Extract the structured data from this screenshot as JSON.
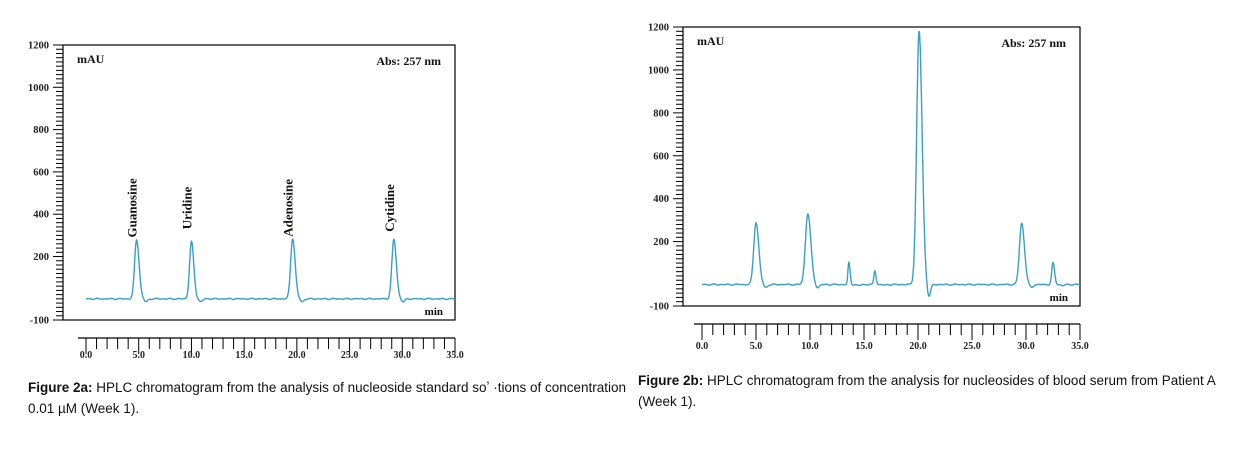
{
  "figures": [
    {
      "chart_data": {
        "type": "line",
        "xlabel": "min",
        "ylabel": "mAU",
        "annotation": "Abs: 257 nm",
        "xlim": [
          0,
          35
        ],
        "ylim": [
          -100,
          1200
        ],
        "x_ticks": [
          "0.0",
          "5.0",
          "10.0",
          "15.0",
          "20.0",
          "25.0",
          "30.0",
          "35.0"
        ],
        "y_ticks": [
          "-100",
          "200",
          "400",
          "600",
          "800",
          "1000",
          "1200"
        ],
        "y_tick_values": [
          -100,
          200,
          400,
          600,
          800,
          1000,
          1200
        ],
        "baseline": 0,
        "peaks": [
          {
            "label": "Guanosine",
            "time": 4.8,
            "height": 280,
            "width": 0.32
          },
          {
            "label": "Uridine",
            "time": 10.0,
            "height": 270,
            "width": 0.3
          },
          {
            "label": "Adenosine",
            "time": 19.6,
            "height": 285,
            "width": 0.32
          },
          {
            "label": "Cytidine",
            "time": 29.2,
            "height": 280,
            "width": 0.32
          }
        ],
        "color": "#3a9fc4"
      },
      "caption_label": "Figure 2a:",
      "caption_text": " HPLC chromatogram from the analysis of nucleoside standard soʼ ·tions of concentration 0.01 µM (Week 1)."
    },
    {
      "chart_data": {
        "type": "line",
        "xlabel": "min",
        "ylabel": "mAU",
        "annotation": "Abs: 257 nm",
        "xlim": [
          0,
          35
        ],
        "ylim": [
          -100,
          1200
        ],
        "x_ticks": [
          "0.0",
          "5.0",
          "10.0",
          "15.0",
          "20.0",
          "25.0",
          "30.0",
          "35.0"
        ],
        "y_ticks": [
          "-100",
          "200",
          "400",
          "600",
          "800",
          "1000",
          "1200"
        ],
        "y_tick_values": [
          -100,
          200,
          400,
          600,
          800,
          1000,
          1200
        ],
        "baseline": 0,
        "peaks": [
          {
            "label": "",
            "time": 5.0,
            "height": 290,
            "width": 0.35
          },
          {
            "label": "",
            "time": 9.8,
            "height": 330,
            "width": 0.38
          },
          {
            "label": "",
            "time": 13.6,
            "height": 100,
            "width": 0.15
          },
          {
            "label": "",
            "time": 16.0,
            "height": 65,
            "width": 0.15
          },
          {
            "label": "",
            "time": 20.1,
            "height": 1180,
            "width": 0.38
          },
          {
            "label": "",
            "time": 29.6,
            "height": 285,
            "width": 0.35
          },
          {
            "label": "",
            "time": 32.5,
            "height": 100,
            "width": 0.2
          }
        ],
        "color": "#3a9fc4"
      },
      "caption_label": "Figure 2b:",
      "caption_text": " HPLC chromatogram from the analysis for nucleosides of blood serum from Patient A (Week 1)."
    }
  ]
}
